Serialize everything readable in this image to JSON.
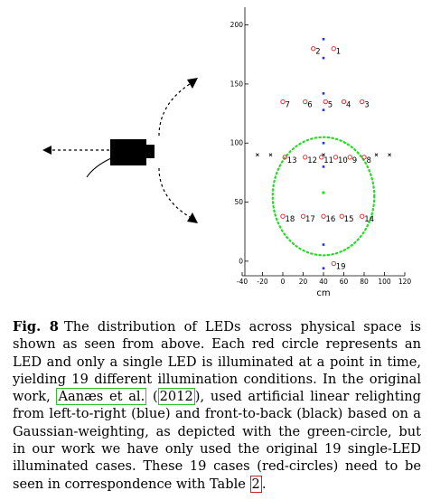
{
  "chart_data": {
    "type": "scatter",
    "xlabel": "cm",
    "xlim": [
      -40,
      120
    ],
    "ylim": [
      -20,
      215
    ],
    "x_ticks": [
      -40,
      -20,
      0,
      20,
      40,
      60,
      80,
      100,
      120
    ],
    "y_ticks": [
      0,
      50,
      100,
      150,
      200
    ],
    "leds": [
      {
        "label": "1",
        "x": 50,
        "y": 180
      },
      {
        "label": "2",
        "x": 30,
        "y": 180
      },
      {
        "label": "3",
        "x": 78,
        "y": 135
      },
      {
        "label": "4",
        "x": 60,
        "y": 135
      },
      {
        "label": "5",
        "x": 42,
        "y": 135
      },
      {
        "label": "6",
        "x": 22,
        "y": 135
      },
      {
        "label": "7",
        "x": 0,
        "y": 135
      },
      {
        "label": "8",
        "x": 80,
        "y": 88
      },
      {
        "label": "9",
        "x": 66,
        "y": 88
      },
      {
        "label": "10",
        "x": 52,
        "y": 88
      },
      {
        "label": "11",
        "x": 38,
        "y": 88
      },
      {
        "label": "12",
        "x": 22,
        "y": 88
      },
      {
        "label": "13",
        "x": 2,
        "y": 88
      },
      {
        "label": "14",
        "x": 78,
        "y": 38
      },
      {
        "label": "15",
        "x": 58,
        "y": 38
      },
      {
        "label": "16",
        "x": 40,
        "y": 38
      },
      {
        "label": "17",
        "x": 20,
        "y": 38
      },
      {
        "label": "18",
        "x": 0,
        "y": 38
      },
      {
        "label": "19",
        "x": 50,
        "y": -2
      }
    ],
    "blue_points": [
      {
        "x": 40,
        "y": 188
      },
      {
        "x": 40,
        "y": 172
      },
      {
        "x": 40,
        "y": 142
      },
      {
        "x": 40,
        "y": 128
      },
      {
        "x": 40,
        "y": 100
      },
      {
        "x": 40,
        "y": 80
      },
      {
        "x": 40,
        "y": 14
      },
      {
        "x": 40,
        "y": -6
      }
    ],
    "black_points": [
      {
        "x": -25,
        "y": 90
      },
      {
        "x": -12,
        "y": 90
      },
      {
        "x": 92,
        "y": 90
      },
      {
        "x": 105,
        "y": 90
      },
      {
        "x": 40,
        "y": 90
      }
    ],
    "green_center_point": {
      "x": 40,
      "y": 58
    },
    "green_circle": {
      "cx": 40,
      "cy": 55,
      "r": 50
    },
    "colors": {
      "led": "#e02020",
      "blue": "#2030e0",
      "black": "#000000",
      "green": "#22dd22"
    }
  },
  "caption": {
    "label": "Fig. 8",
    "text_1": "The distribution of LEDs across physical space is shown as seen from above. Each red circle represents an LED and only a single LED is illuminated at a point in time, yielding 19 different illumination conditions. In the original work, ",
    "cite_author": "Aanæs et al.",
    "cite_year": "2012",
    "text_2": ", used artificial linear relighting from left-to-right (blue) and front-to-back (black) based on a Gaussian-weighting, as depicted with the green-circle, but in our work we have only used the original 19 single-LED illuminated cases. These 19 cases (red-circles) need to be seen in correspondence with Table ",
    "table_ref": "2",
    "text_end": "."
  },
  "illustration": {
    "camera_icon": "camera-icon",
    "arrow_icons": [
      "arrow-up-right-icon",
      "arrow-down-right-icon",
      "arrow-left-icon"
    ]
  }
}
